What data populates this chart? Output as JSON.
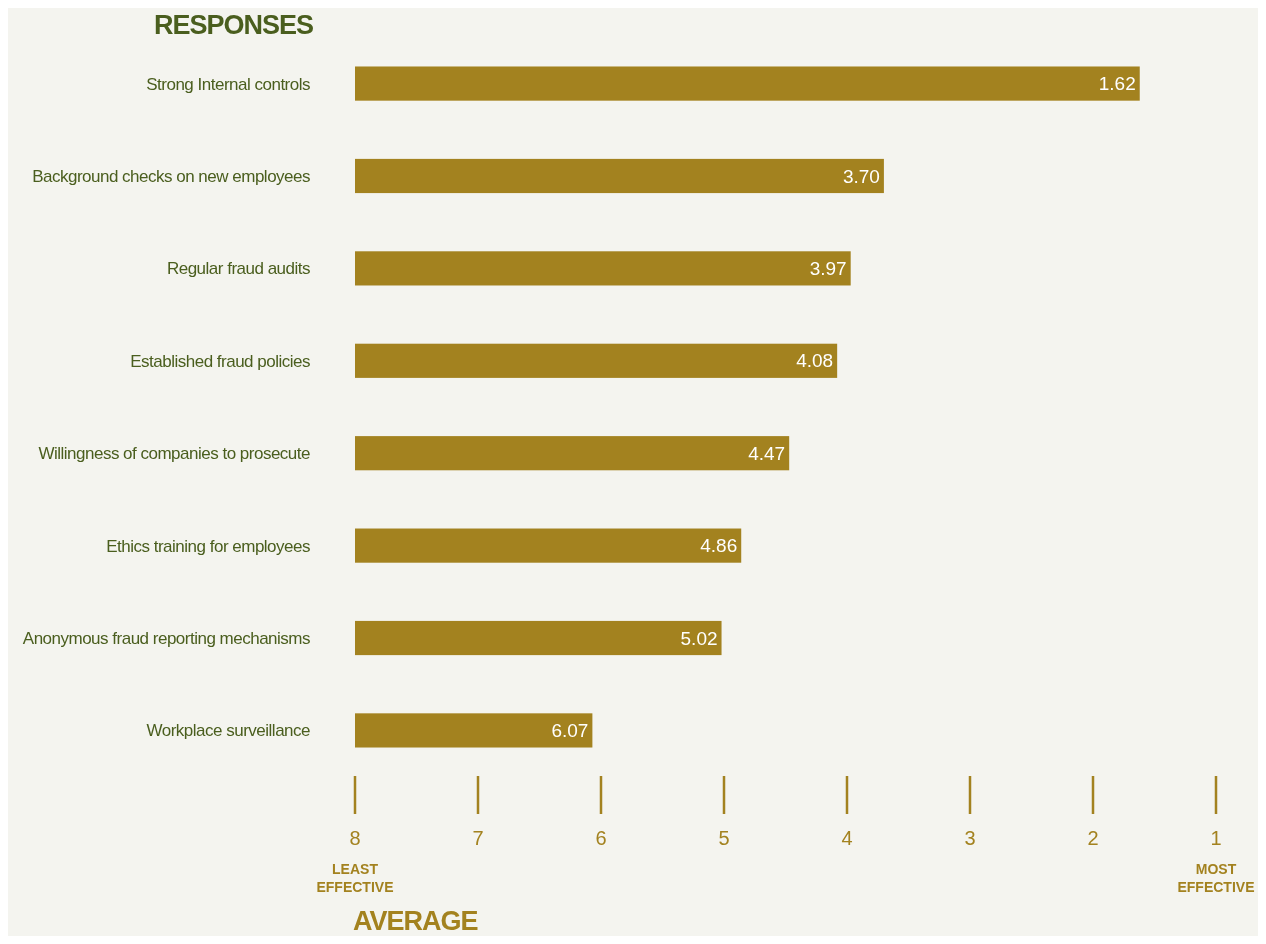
{
  "chart_data": {
    "type": "bar",
    "orientation": "horizontal",
    "ylabel": "RESPONSES",
    "xlabel": "AVERAGE",
    "categories": [
      "Strong Internal controls",
      "Background checks on new employees",
      "Regular fraud audits",
      "Established fraud policies",
      "Willingness of companies to prosecute",
      "Ethics training for employees",
      "Anonymous fraud reporting mechanisms",
      "Workplace surveillance"
    ],
    "base": [
      8,
      8,
      8,
      8,
      8,
      8,
      8,
      8
    ],
    "values": [
      -6.38,
      -4.3,
      -4.03,
      -3.92,
      -3.53,
      -3.14,
      -2.98,
      -1.93
    ],
    "value_labels": [
      "1.62",
      "3.70",
      "3.97",
      "4.08",
      "4.47",
      "4.86",
      "5.02",
      "6.07"
    ],
    "color": "#a3821f",
    "xlim": [
      8,
      1
    ],
    "xticks": [
      8,
      7,
      6,
      5,
      4,
      3,
      2,
      1
    ],
    "annotations": [
      "LEAST EFFECTIVE",
      "MOST EFFECTIVE"
    ]
  }
}
